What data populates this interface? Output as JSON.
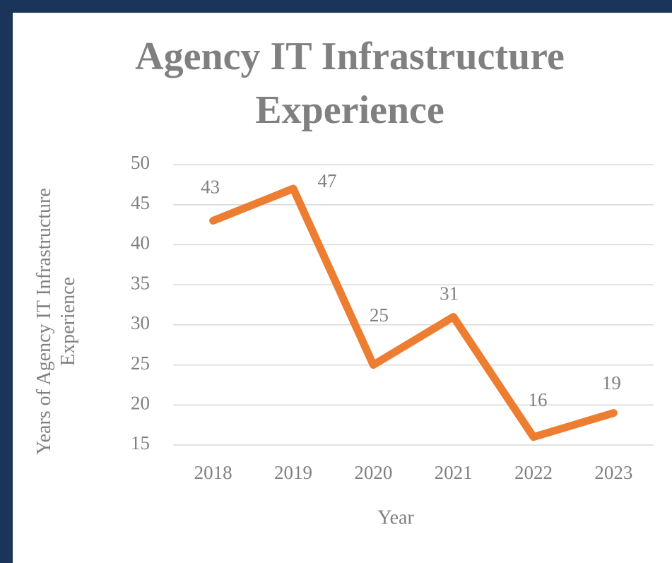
{
  "chart_data": {
    "type": "line",
    "title": "Agency IT Infrastructure Experience",
    "x_label": "Year",
    "y_label": "Years of Agency IT Infrastructure Experience",
    "categories": [
      "2018",
      "2019",
      "2020",
      "2021",
      "2022",
      "2023"
    ],
    "series": [
      {
        "name": "Years of Agency IT Infrastructure Experience",
        "color": "#ed7d31",
        "values": [
          43,
          47,
          25,
          31,
          16,
          19
        ]
      }
    ],
    "ylim": [
      15,
      50
    ],
    "yticks": [
      15,
      20,
      25,
      30,
      35,
      40,
      45,
      50
    ],
    "grid": true
  }
}
